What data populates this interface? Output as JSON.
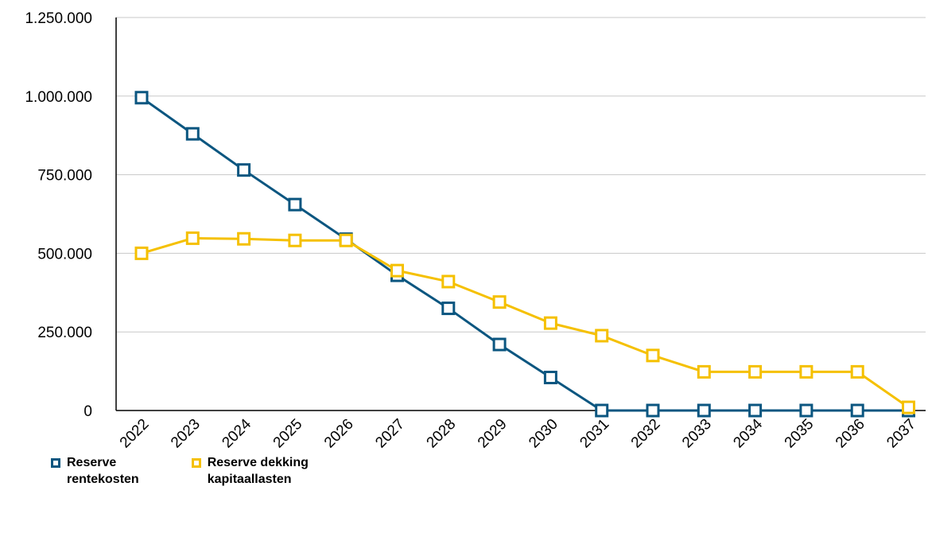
{
  "chart_data": {
    "type": "line",
    "categories": [
      "2022",
      "2023",
      "2024",
      "2025",
      "2026",
      "2027",
      "2028",
      "2029",
      "2030",
      "2031",
      "2032",
      "2033",
      "2034",
      "2035",
      "2036",
      "2037"
    ],
    "series": [
      {
        "name": "Reserve rentekosten",
        "color": "#0b5680",
        "values": [
          995000,
          880000,
          765000,
          655000,
          545000,
          430000,
          325000,
          210000,
          105000,
          0,
          0,
          0,
          0,
          0,
          0,
          0
        ]
      },
      {
        "name": "Reserve dekking kapitaallasten",
        "color": "#f5c000",
        "values": [
          500000,
          548000,
          546000,
          541000,
          541000,
          445000,
          410000,
          345000,
          278000,
          238000,
          175000,
          123000,
          123000,
          123000,
          123000,
          10000
        ]
      }
    ],
    "ylim": [
      0,
      1250000
    ],
    "yticks": [
      0,
      250000,
      500000,
      750000,
      1000000,
      1250000
    ],
    "ytick_labels": [
      "0",
      "250.000",
      "500.000",
      "750.000",
      "1.000.000",
      "1.250.000"
    ],
    "grid": true,
    "legend_position": "bottom-left",
    "xlabel": "",
    "ylabel": "",
    "title": ""
  },
  "legend": {
    "items": [
      {
        "label": "Reserve\nrentekosten",
        "color": "#0b5680"
      },
      {
        "label": "Reserve dekking\nkapitaallasten",
        "color": "#f5c000"
      }
    ]
  }
}
